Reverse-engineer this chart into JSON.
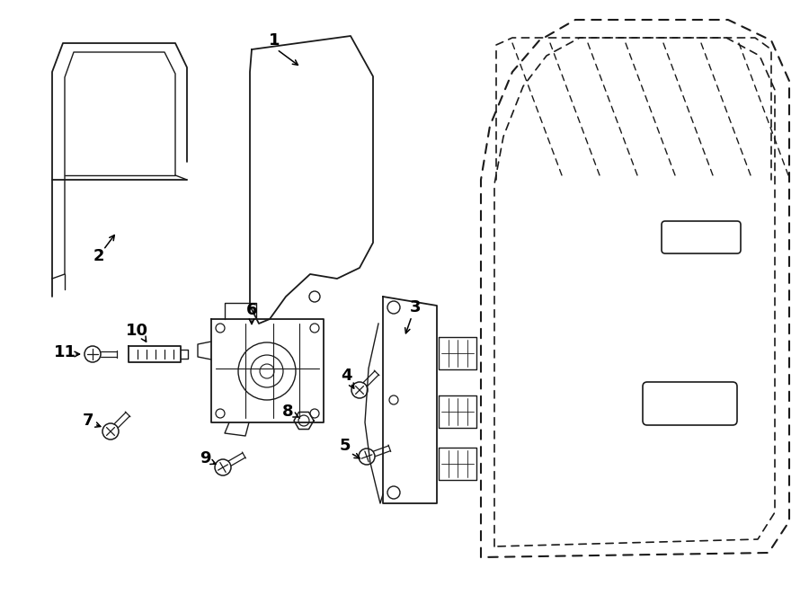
{
  "bg_color": "#ffffff",
  "lc": "#1a1a1a",
  "figsize": [
    9.0,
    6.62
  ],
  "dpi": 100,
  "title_fontsize": 11,
  "label_fontsize": 12
}
